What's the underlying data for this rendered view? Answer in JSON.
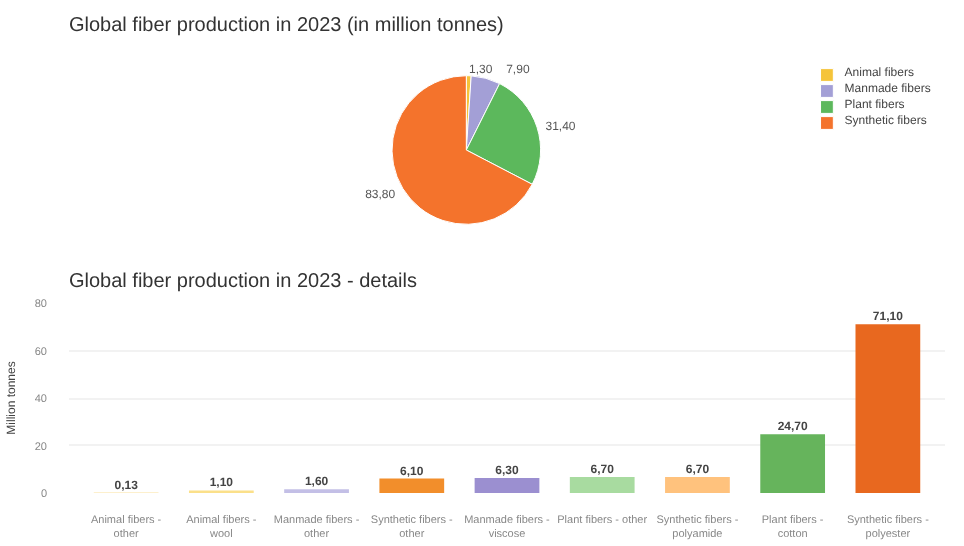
{
  "chart_data": [
    {
      "type": "pie",
      "title": "Global fiber production in 2023 (in million tonnes)",
      "categories": [
        "Animal fibers",
        "Manmade fibers",
        "Plant fibers",
        "Synthetic fibers"
      ],
      "values": [
        1.3,
        7.9,
        31.4,
        83.8
      ],
      "value_labels": [
        "1,30",
        "7,90",
        "31,40",
        "83,80"
      ],
      "colors": [
        "#f5c43a",
        "#a39fd6",
        "#5cb85c",
        "#f4732c"
      ],
      "legend": "right"
    },
    {
      "type": "bar",
      "title": "Global fiber production in 2023 - details",
      "ylabel": "Million tonnes",
      "categories": [
        "Animal fibers -\nother",
        "Animal fibers -\nwool",
        "Manmade fibers -\nother",
        "Synthetic fibers -\nother",
        "Manmade fibers -\nviscose",
        "Plant fibers - other",
        "Synthetic fibers -\npolyamide",
        "Plant fibers -\ncotton",
        "Synthetic fibers -\npolyester"
      ],
      "values": [
        0.13,
        1.1,
        1.6,
        6.1,
        6.3,
        6.7,
        6.7,
        24.7,
        71.1
      ],
      "value_labels": [
        "0,13",
        "1,10",
        "1,60",
        "6,10",
        "6,30",
        "6,70",
        "6,70",
        "24,70",
        "71,10"
      ],
      "colors": [
        "#f5c43a",
        "#fbe08a",
        "#c3bfe6",
        "#f28e2b",
        "#9b8fd0",
        "#a8dba0",
        "#ffc27d",
        "#66b45c",
        "#e8681f"
      ],
      "ylim": [
        0,
        80
      ],
      "yticks": [
        0,
        20,
        40,
        60,
        80
      ],
      "grid": "y"
    }
  ]
}
